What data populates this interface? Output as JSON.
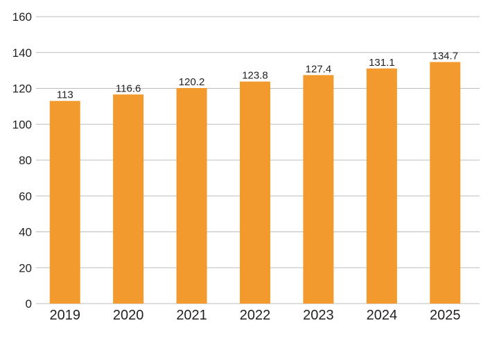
{
  "chart_data": {
    "type": "bar",
    "title": "",
    "xlabel": "",
    "ylabel": "",
    "categories": [
      "2019",
      "2020",
      "2021",
      "2022",
      "2023",
      "2024",
      "2025"
    ],
    "values": [
      113,
      116.6,
      120.2,
      123.8,
      127.4,
      131.1,
      134.7
    ],
    "data_labels": [
      "113",
      "116.6",
      "120.2",
      "123.8",
      "127.4",
      "131.1",
      "134.7"
    ],
    "ylim": [
      0,
      160
    ],
    "yticks": [
      0,
      20,
      40,
      60,
      80,
      100,
      120,
      140,
      160
    ],
    "grid": true,
    "legend": "none",
    "bar_color": "#F39A2E",
    "grid_color": "#BDBDBD"
  }
}
